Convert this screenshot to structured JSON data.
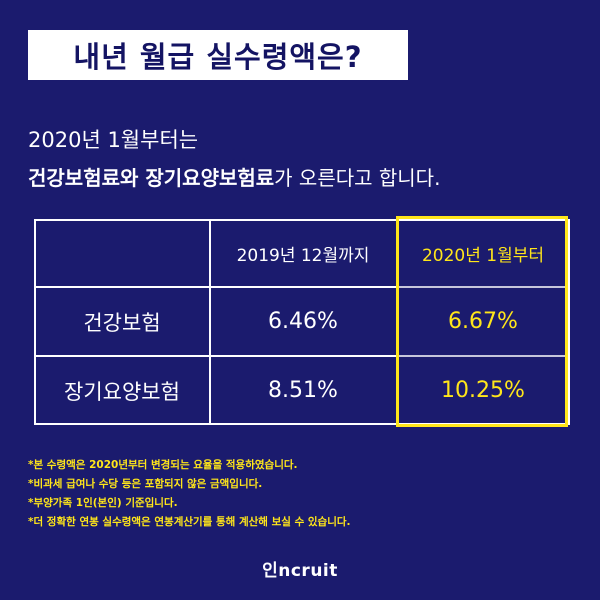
{
  "title": "내년 월급 실수령액은?",
  "intro": {
    "line1": "2020년 1월부터는",
    "line2_bold": "건강보험료와 장기요양보험료",
    "line2_rest": "가 오른다고 합니다."
  },
  "table": {
    "columns": [
      "",
      "2019년 12월까지",
      "2020년 1월부터"
    ],
    "rows": [
      {
        "label": "건강보험",
        "before": "6.46%",
        "after": "6.67%"
      },
      {
        "label": "장기요양보험",
        "before": "8.51%",
        "after": "10.25%"
      }
    ]
  },
  "notes": [
    "*본 수령액은 2020년부터 변경되는 요율을 적용하였습니다.",
    "*비과세 급여나 수당 등은 포함되지 않은 금액입니다.",
    "*부양가족 1인(본인) 기준입니다.",
    "*더 정확한 연봉 실수령액은 연봉계산기를 통해 계산해 보실 수 있습니다."
  ],
  "logo": "인ncruit",
  "colors": {
    "background": "#1b1b6e",
    "highlight": "#ffe61a",
    "text": "#ffffff"
  }
}
